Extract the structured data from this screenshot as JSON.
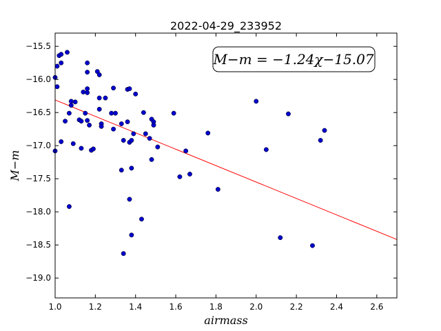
{
  "chart_data": {
    "type": "scatter",
    "title": "2022-04-29_233952",
    "xlabel": "airmass",
    "ylabel": "M−m",
    "xlim": [
      1.0,
      2.7
    ],
    "ylim": [
      -15.3,
      -19.3
    ],
    "y_axis_inverted": true,
    "x_ticks": [
      1.0,
      1.2,
      1.4,
      1.6,
      1.8,
      2.0,
      2.2,
      2.4,
      2.6
    ],
    "x_tick_labels": [
      "1.0",
      "1.2",
      "1.4",
      "1.6",
      "1.8",
      "2.0",
      "2.2",
      "2.4",
      "2.6"
    ],
    "y_ticks": [
      -15.5,
      -16.0,
      -16.5,
      -17.0,
      -17.5,
      -18.0,
      -18.5,
      -19.0
    ],
    "y_tick_labels": [
      "−15.5",
      "−16.0",
      "−16.5",
      "−17.0",
      "−17.5",
      "−18.0",
      "−18.5",
      "−19.0"
    ],
    "grid": false,
    "annotation": "M−m = −1.24χ−15.07",
    "annotation_position": "top-right",
    "fit": {
      "slope": -1.24,
      "intercept": -15.07,
      "color": "#ff0000"
    },
    "marker_color": "#0000cc",
    "series": [
      {
        "points": [
          [
            1.0,
            -15.97
          ],
          [
            1.01,
            -16.11
          ],
          [
            1.0,
            -17.08
          ],
          [
            1.01,
            -15.8
          ],
          [
            1.02,
            -15.64
          ],
          [
            1.03,
            -15.75
          ],
          [
            1.03,
            -15.62
          ],
          [
            1.06,
            -15.59
          ],
          [
            1.03,
            -16.94
          ],
          [
            1.05,
            -16.63
          ],
          [
            1.07,
            -16.51
          ],
          [
            1.08,
            -16.33
          ],
          [
            1.08,
            -16.39
          ],
          [
            1.1,
            -16.34
          ],
          [
            1.09,
            -16.97
          ],
          [
            1.07,
            -17.92
          ],
          [
            1.12,
            -16.61
          ],
          [
            1.13,
            -16.63
          ],
          [
            1.13,
            -17.04
          ],
          [
            1.14,
            -16.19
          ],
          [
            1.15,
            -16.51
          ],
          [
            1.16,
            -16.14
          ],
          [
            1.16,
            -16.2
          ],
          [
            1.16,
            -15.89
          ],
          [
            1.16,
            -15.75
          ],
          [
            1.16,
            -16.62
          ],
          [
            1.17,
            -16.69
          ],
          [
            1.18,
            -17.07
          ],
          [
            1.19,
            -17.05
          ],
          [
            1.21,
            -15.88
          ],
          [
            1.22,
            -15.93
          ],
          [
            1.22,
            -16.28
          ],
          [
            1.22,
            -16.45
          ],
          [
            1.23,
            -16.67
          ],
          [
            1.23,
            -16.71
          ],
          [
            1.25,
            -16.28
          ],
          [
            1.28,
            -16.51
          ],
          [
            1.29,
            -16.13
          ],
          [
            1.29,
            -16.75
          ],
          [
            1.3,
            -16.51
          ],
          [
            1.33,
            -16.67
          ],
          [
            1.34,
            -16.92
          ],
          [
            1.33,
            -17.37
          ],
          [
            1.34,
            -18.63
          ],
          [
            1.36,
            -16.15
          ],
          [
            1.37,
            -16.14
          ],
          [
            1.36,
            -16.64
          ],
          [
            1.37,
            -16.95
          ],
          [
            1.38,
            -16.92
          ],
          [
            1.38,
            -17.34
          ],
          [
            1.37,
            -17.81
          ],
          [
            1.38,
            -18.35
          ],
          [
            1.39,
            -16.82
          ],
          [
            1.4,
            -16.22
          ],
          [
            1.43,
            -18.11
          ],
          [
            1.44,
            -16.5
          ],
          [
            1.45,
            -16.82
          ],
          [
            1.47,
            -16.89
          ],
          [
            1.48,
            -16.6
          ],
          [
            1.49,
            -16.64
          ],
          [
            1.49,
            -16.69
          ],
          [
            1.48,
            -17.21
          ],
          [
            1.51,
            -17.02
          ],
          [
            1.59,
            -16.51
          ],
          [
            1.62,
            -17.47
          ],
          [
            1.65,
            -17.08
          ],
          [
            1.67,
            -17.43
          ],
          [
            1.76,
            -16.81
          ],
          [
            1.81,
            -17.66
          ],
          [
            2.0,
            -16.33
          ],
          [
            2.05,
            -17.06
          ],
          [
            2.12,
            -18.39
          ],
          [
            2.16,
            -16.52
          ],
          [
            2.28,
            -18.51
          ],
          [
            2.32,
            -16.92
          ],
          [
            2.34,
            -16.77
          ]
        ]
      }
    ]
  }
}
